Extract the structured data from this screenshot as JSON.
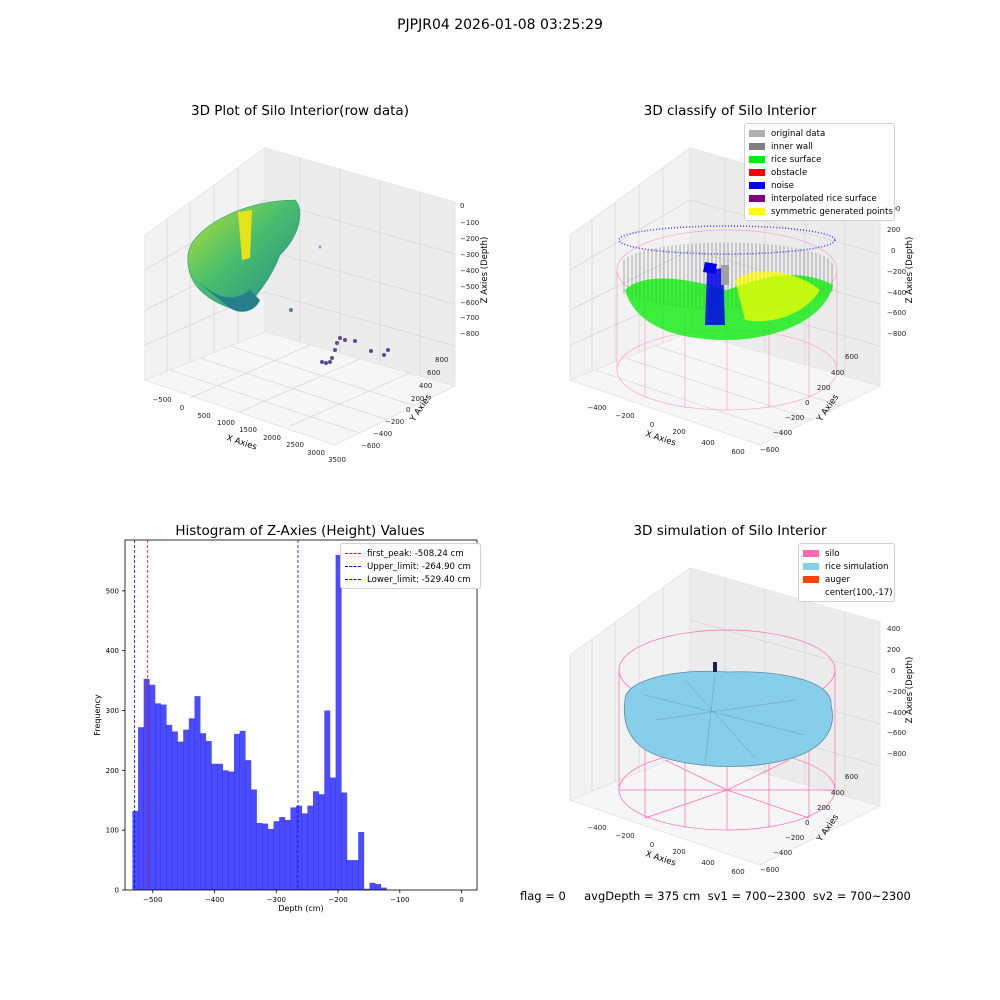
{
  "figure": {
    "suptitle": "PJPJR04 2026-01-08 03:25:29"
  },
  "panel1": {
    "title": "3D Plot of Silo Interior(row data)",
    "xlabel": "X Axies",
    "ylabel": "Y Axies",
    "zlabel": "Z Axies (Depth)",
    "xticks": [
      "−500",
      "0",
      "500",
      "1000",
      "1500",
      "2000",
      "2500",
      "3000",
      "3500"
    ],
    "yticks": [
      "800",
      "600",
      "400",
      "200",
      "0",
      "−200",
      "−400",
      "−600"
    ],
    "zticks": [
      "0",
      "−100",
      "−200",
      "−300",
      "−400",
      "−500",
      "−600",
      "−700",
      "−800"
    ]
  },
  "panel2": {
    "title": "3D classify of Silo Interior",
    "xlabel": "X Axies",
    "ylabel": "Y Axies",
    "zlabel": "Z Axies (Depth)",
    "xticks": [
      "−400",
      "−200",
      "0",
      "200",
      "400",
      "600"
    ],
    "yticks": [
      "600",
      "400",
      "200",
      "0",
      "−200",
      "−400",
      "−600"
    ],
    "zticks": [
      "400",
      "200",
      "0",
      "−200",
      "−400",
      "−600",
      "−800"
    ],
    "legend": [
      {
        "label": "original data",
        "color": "#b0b0b0"
      },
      {
        "label": "inner wall",
        "color": "#808080"
      },
      {
        "label": "rice surface",
        "color": "#00ee00"
      },
      {
        "label": "obstacle",
        "color": "#ff0000"
      },
      {
        "label": "noise",
        "color": "#0000ee"
      },
      {
        "label": "interpolated rice surface",
        "color": "#800080"
      },
      {
        "label": "symmetric generated points",
        "color": "#ffff00"
      }
    ]
  },
  "panel4": {
    "title": "3D simulation of Silo Interior",
    "xlabel": "X Axies",
    "ylabel": "Y Axies",
    "zlabel": "Z Axies (Depth)",
    "xticks": [
      "−400",
      "−200",
      "0",
      "200",
      "400",
      "600"
    ],
    "yticks": [
      "600",
      "400",
      "200",
      "0",
      "−200",
      "−400",
      "−600"
    ],
    "zticks": [
      "400",
      "200",
      "0",
      "−200",
      "−400",
      "−600",
      "−800"
    ],
    "legend": [
      {
        "label": "silo",
        "color": "#ff69b4"
      },
      {
        "label": "rice simulation",
        "color": "#87ceeb"
      },
      {
        "label": "auger",
        "color": "#ff4500"
      },
      {
        "label": "center(100,-17)",
        "color": ""
      }
    ]
  },
  "chart_data": {
    "type": "bar",
    "title": "Histogram of Z-Axies (Height) Values",
    "xlabel": "Depth (cm)",
    "ylabel": "Frequency",
    "xlim": [
      -545,
      25
    ],
    "ylim": [
      0,
      585
    ],
    "xticks": [
      -500,
      -400,
      -300,
      -200,
      -100,
      0
    ],
    "yticks": [
      0,
      100,
      200,
      300,
      400,
      500
    ],
    "bar_color": "#0000ff",
    "bins": {
      "start": -533,
      "width": 9.14
    },
    "values": [
      132,
      272,
      353,
      343,
      312,
      310,
      276,
      265,
      248,
      268,
      287,
      324,
      262,
      249,
      211,
      211,
      200,
      198,
      261,
      266,
      217,
      168,
      112,
      111,
      102,
      115,
      122,
      117,
      138,
      141,
      128,
      141,
      165,
      160,
      300,
      188,
      560,
      163,
      50,
      50,
      97,
      2,
      12,
      10,
      4
    ],
    "vlines": [
      {
        "x": -508.24,
        "color": "#ff0000"
      },
      {
        "x": -264.9,
        "color": "#0000ff"
      },
      {
        "x": -529.4,
        "color": "#0000ff"
      }
    ],
    "legend": [
      {
        "label": "first_peak: -508.24 cm",
        "color": "#ff0000"
      },
      {
        "label": "Upper_limit: -264.90 cm",
        "color": "#0000ff"
      },
      {
        "label": "Lower_limit: -529.40 cm",
        "color": "#0000ff"
      }
    ],
    "legend_position": "top-right"
  },
  "footer": {
    "text": "flag = 0     avgDepth = 375 cm  sv1 = 700~2300  sv2 = 700~2300"
  }
}
